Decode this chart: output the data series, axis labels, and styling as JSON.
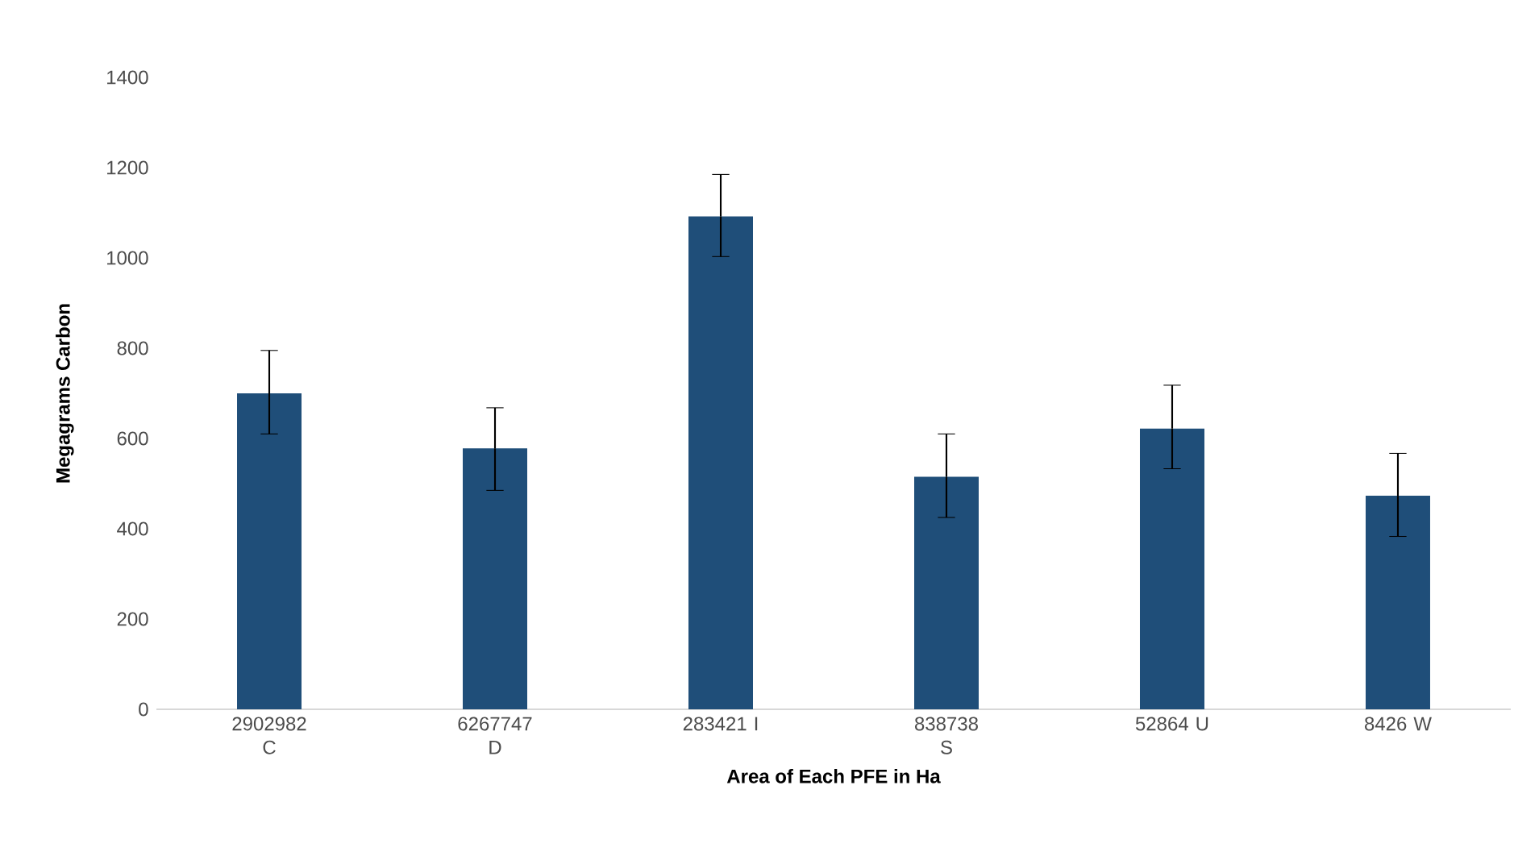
{
  "chart_data": {
    "type": "bar",
    "xlabel": "Area of Each PFE in Ha",
    "ylabel": "Megagrams Carbon",
    "categories": [
      "2902982 C",
      "6267747 D",
      "283421 I",
      "838738 S",
      "52864 U",
      "8426 W"
    ],
    "values": [
      700,
      578,
      1092,
      515,
      622,
      473
    ],
    "errors": [
      [
        610,
        795
      ],
      [
        485,
        668
      ],
      [
        1003,
        1185
      ],
      [
        425,
        610
      ],
      [
        533,
        718
      ],
      [
        383,
        567
      ]
    ],
    "color": "#1f4e79",
    "ylim": [
      0,
      1400
    ],
    "yticks": [
      0,
      200,
      400,
      600,
      800,
      1000,
      1200,
      1400
    ]
  }
}
